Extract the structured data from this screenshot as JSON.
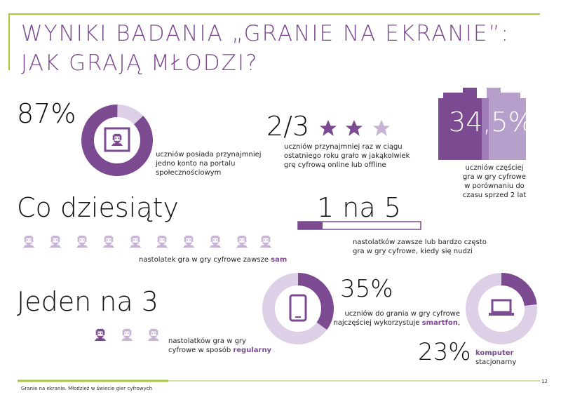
{
  "header": {
    "title_line1": "WYNIKI BADANIA „GRANIE NA EKRANIE”:",
    "title_line2": "JAK GRAJĄ MŁODZI?"
  },
  "stats": [
    {
      "figure": "87%",
      "lines": [
        "uczniów posiada przynajmniej",
        "jedno konto na portalu",
        "społecznościowym"
      ]
    },
    {
      "figure": "2/3",
      "lines": [
        "uczniów przynajmniej raz w ciągu",
        "ostatniego roku grało w jakąkolwiek",
        "grę cyfrową online lub offline"
      ]
    },
    {
      "figure": "34,5%",
      "lines": [
        "uczniów częściej",
        "gra w gry cyfrowe",
        "w porównaniu do",
        "czasu sprzed 2 lat"
      ]
    },
    {
      "figure": "Co dziesiąty",
      "text": "nastolatek gra w gry cyfrowe zawsze ",
      "highlight": "sam"
    },
    {
      "figure": "1 na 5",
      "lines": [
        "nastolatków zawsze lub bardzo często",
        "gra w gry cyfrowe, kiedy się nudzi"
      ]
    },
    {
      "figure": "Jeden na 3",
      "line1": "nastolatków gra w gry",
      "line2": "cyfrowe w sposób ",
      "highlight": "regularny"
    },
    {
      "figure": "35%",
      "line1": "uczniów do grania w gry cyfrowe",
      "line2": "najczęściej wykorzystuje ",
      "highlight": "smartfon",
      "tail": ","
    },
    {
      "figure": "23%",
      "highlight": "komputer",
      "line2": "stacjonarny"
    }
  ],
  "footer": {
    "text": "Granie na ekranie. Młodzież w świecie gier cyfrowych",
    "page": "12"
  }
}
